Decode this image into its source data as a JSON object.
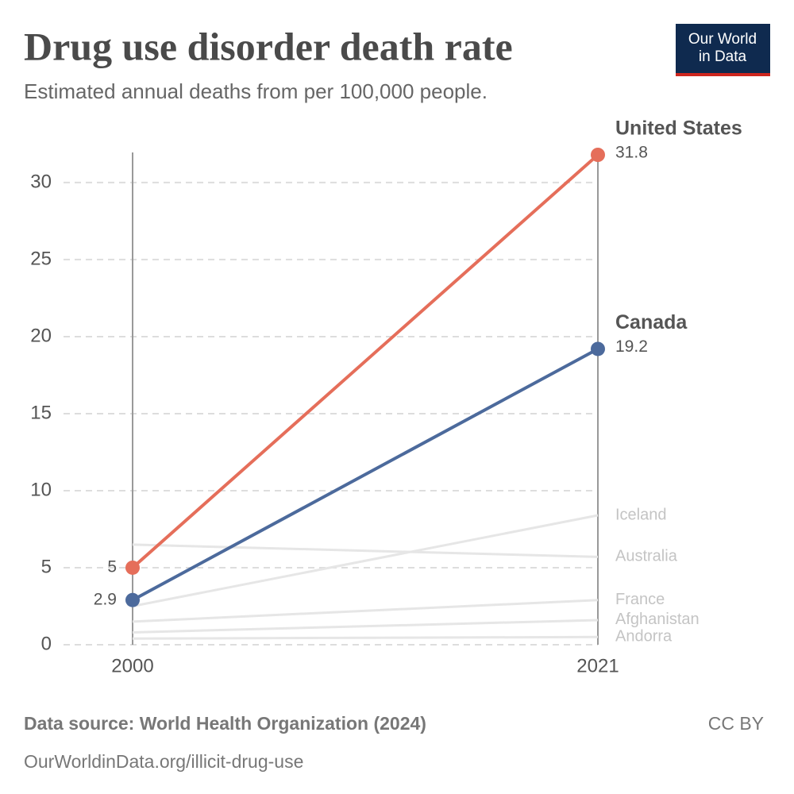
{
  "chart_data": {
    "type": "slope",
    "title": "Drug use disorder death rate",
    "subtitle": "Estimated annual deaths from per 100,000 people.",
    "logo": [
      "Our World",
      "in Data"
    ],
    "source": "Data source: World Health Organization (2024)",
    "url": "OurWorldinData.org/illicit-drug-use",
    "license": "CC BY",
    "x": [
      2000,
      2021
    ],
    "xticks": [
      2000,
      2021
    ],
    "ylim": [
      0,
      31.8
    ],
    "yticks": [
      0,
      5,
      10,
      15,
      20,
      25,
      30
    ],
    "grid": true,
    "series": [
      {
        "name": "United States",
        "color": "#e56e5a",
        "values": [
          5,
          31.8
        ]
      },
      {
        "name": "Canada",
        "color": "#4c6a9c",
        "values": [
          2.9,
          19.2
        ]
      }
    ],
    "background_series": [
      {
        "name": "Iceland",
        "color": "#e6e6e6",
        "values": [
          2.5,
          8.4
        ]
      },
      {
        "name": "Australia",
        "color": "#e6e6e6",
        "values": [
          6.5,
          5.7
        ]
      },
      {
        "name": "France",
        "color": "#e6e6e6",
        "values": [
          1.5,
          2.9
        ]
      },
      {
        "name": "Afghanistan",
        "color": "#e6e6e6",
        "values": [
          0.8,
          1.6
        ]
      },
      {
        "name": "Andorra",
        "color": "#e6e6e6",
        "values": [
          0.4,
          0.5
        ]
      }
    ]
  }
}
